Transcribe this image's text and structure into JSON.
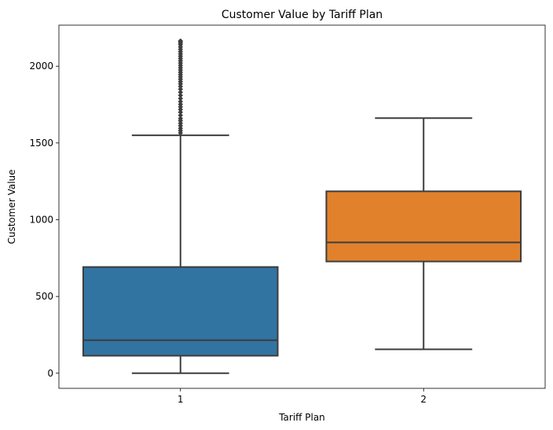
{
  "chart_data": {
    "type": "box",
    "title": "Customer Value by Tariff Plan",
    "xlabel": "Tariff Plan",
    "ylabel": "Customer Value",
    "categories": [
      "1",
      "2"
    ],
    "ylim": [
      -98.4,
      2267.3
    ],
    "yticks": [
      0,
      500,
      1000,
      1500,
      2000
    ],
    "grid": false,
    "boxes": [
      {
        "category": "1",
        "color": "#3274a1",
        "whisker_low": 0,
        "q1": 114,
        "median": 215,
        "q3": 692,
        "whisker_high": 1550,
        "outliers": [
          1565,
          1580,
          1595,
          1612,
          1628,
          1645,
          1660,
          1680,
          1700,
          1718,
          1735,
          1752,
          1770,
          1790,
          1810,
          1830,
          1850,
          1868,
          1885,
          1900,
          1915,
          1930,
          1945,
          1960,
          1975,
          1990,
          2005,
          2020,
          2035,
          2050,
          2065,
          2080,
          2095,
          2110,
          2125,
          2140,
          2150,
          2160,
          2165
        ]
      },
      {
        "category": "2",
        "color": "#e1812c",
        "whisker_low": 156,
        "q1": 728,
        "median": 852,
        "q3": 1185,
        "whisker_high": 1662,
        "outliers": []
      }
    ]
  }
}
